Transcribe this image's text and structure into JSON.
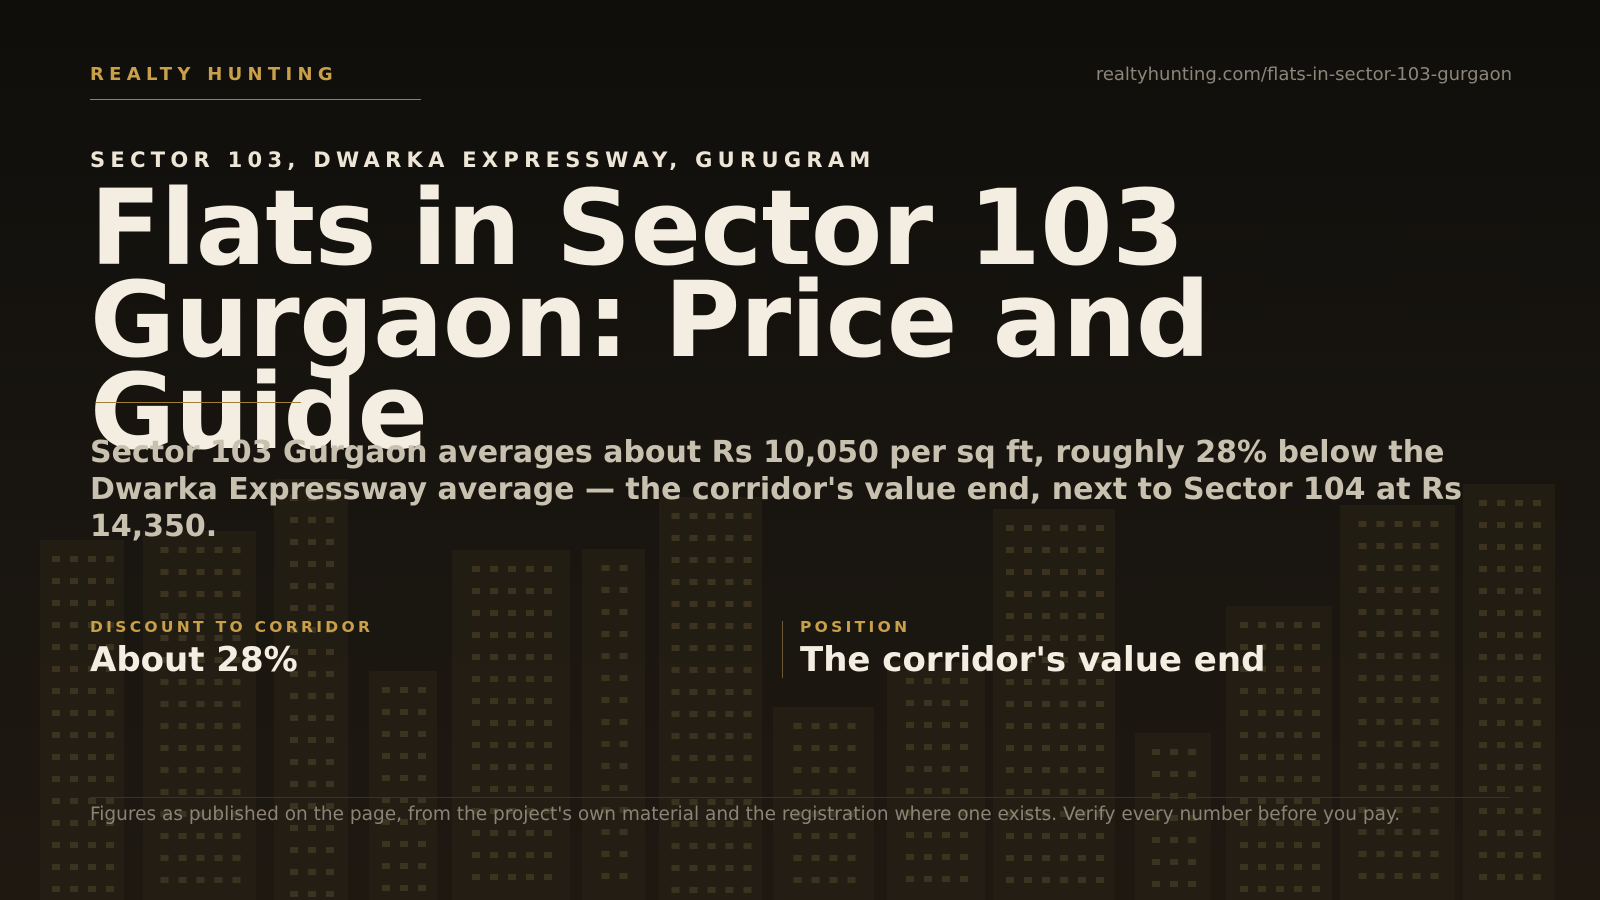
{
  "brand": {
    "name": "REALTY HUNTING",
    "url": "realtyhunting.com/flats-in-sector-103-gurgaon"
  },
  "hero": {
    "eyebrow": "SECTOR 103, DWARKA EXPRESSWAY, GURUGRAM",
    "headline": "Flats in Sector 103 Gurgaon: Price and Guide",
    "summary": "Sector 103 Gurgaon averages about Rs 10,050 per sq ft, roughly 28% below the Dwarka Expressway average — the corridor's value end, next to Sector 104 at Rs 14,350."
  },
  "stats": [
    {
      "label": "DISCOUNT TO CORRIDOR",
      "value": "About 28%"
    },
    {
      "label": "POSITION",
      "value": "The corridor's value end"
    }
  ],
  "footer": {
    "disclaimer": "Figures as published on the page, from the project's own material and the registration where one exists. Verify every number before you pay."
  },
  "colors": {
    "background": "#14120d",
    "accent": "#c9a049",
    "headline": "#f3eee1",
    "body_text": "#c9c1b0",
    "muted": "#8c8579",
    "building": "#241e14",
    "window": "#3c3220"
  }
}
